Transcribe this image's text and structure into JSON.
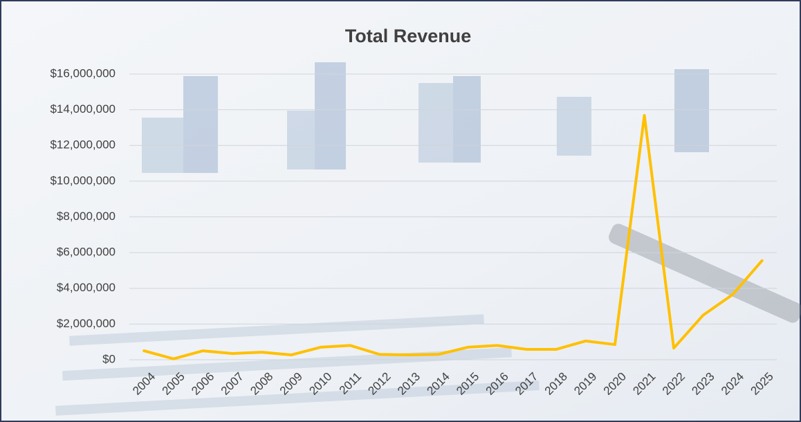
{
  "chart_data": {
    "type": "line",
    "title": "Total Revenue",
    "categories": [
      "2004",
      "2005",
      "2006",
      "2007",
      "2008",
      "2009",
      "2010",
      "2011",
      "2012",
      "2013",
      "2014",
      "2015",
      "2016",
      "2017",
      "2018",
      "2019",
      "2020",
      "2021",
      "2022",
      "2023",
      "2024",
      "2025"
    ],
    "values": [
      500000,
      50000,
      500000,
      350000,
      420000,
      270000,
      700000,
      800000,
      300000,
      270000,
      300000,
      700000,
      800000,
      580000,
      580000,
      1050000,
      850000,
      13680000,
      650000,
      2500000,
      3650000,
      5550000
    ],
    "color": "#ffc000",
    "ylim": [
      0,
      16000000
    ],
    "yticks": [
      {
        "value": 0,
        "label": "$0"
      },
      {
        "value": 2000000,
        "label": "$2,000,000"
      },
      {
        "value": 4000000,
        "label": "$4,000,000"
      },
      {
        "value": 6000000,
        "label": "$6,000,000"
      },
      {
        "value": 8000000,
        "label": "$8,000,000"
      },
      {
        "value": 10000000,
        "label": "$10,000,000"
      },
      {
        "value": 12000000,
        "label": "$12,000,000"
      },
      {
        "value": 14000000,
        "label": "$14,000,000"
      },
      {
        "value": 16000000,
        "label": "$16,000,000"
      }
    ],
    "grid": true
  }
}
